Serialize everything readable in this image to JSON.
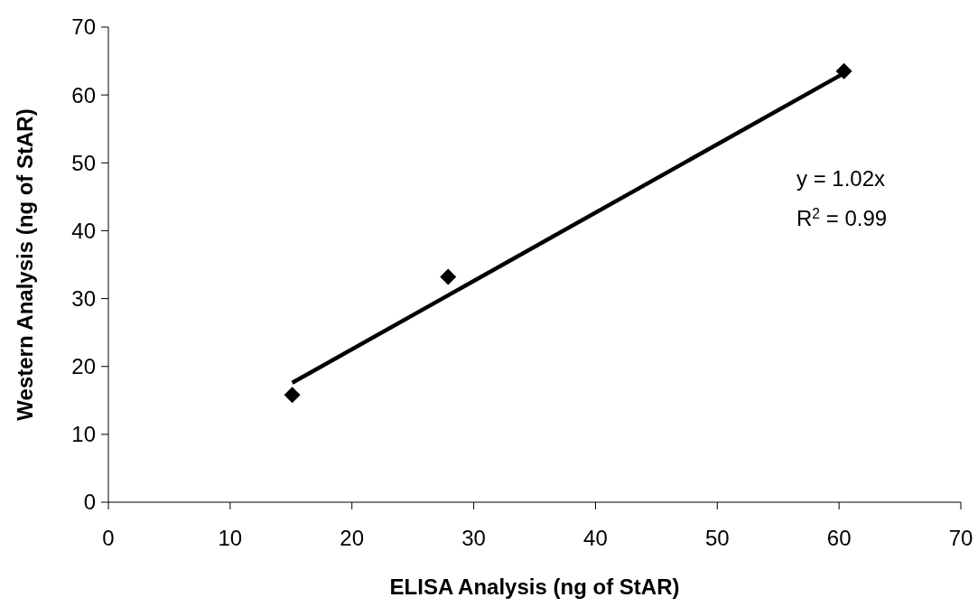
{
  "chart_data": {
    "type": "scatter",
    "xlabel": "ELISA Analysis (ng of StAR)",
    "ylabel": "Western Analysis (ng of StAR)",
    "xlim": [
      0,
      70
    ],
    "ylim": [
      0,
      70
    ],
    "xticks": [
      0,
      10,
      20,
      30,
      40,
      50,
      60,
      70
    ],
    "yticks": [
      0,
      10,
      20,
      30,
      40,
      50,
      60,
      70
    ],
    "grid": false,
    "marker": "diamond",
    "series": [
      {
        "color": "#000000",
        "x": [
          15.1,
          27.9,
          60.4
        ],
        "values": [
          15.8,
          33.2,
          63.5
        ]
      },
      {
        "type": "line",
        "color": "#000000",
        "x": [
          15.1,
          60.4
        ],
        "values": [
          17.6,
          63.2
        ],
        "marker": "none",
        "line_style": "solid"
      }
    ],
    "annotations": [
      "y = 1.02x",
      "R$^{2}$ = 0.99"
    ]
  }
}
